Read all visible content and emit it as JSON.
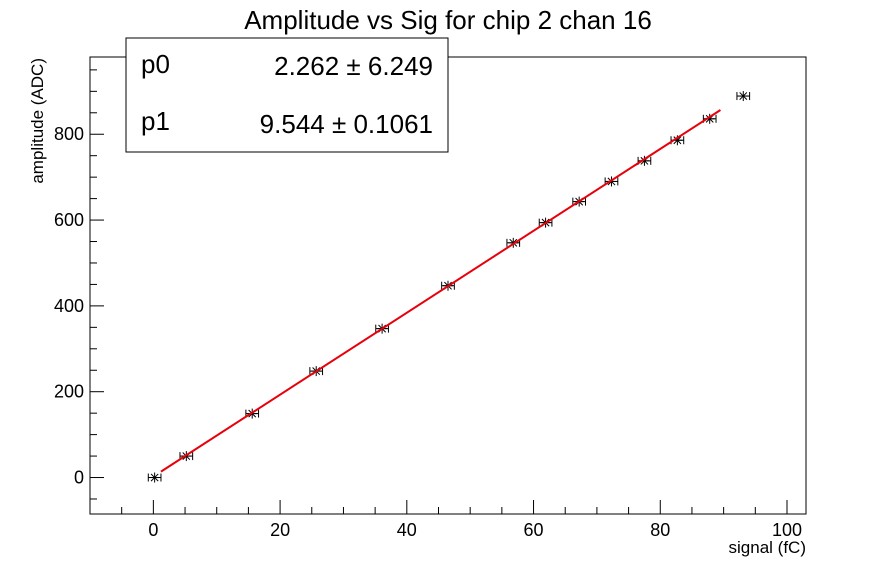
{
  "chart_data": {
    "type": "scatter",
    "title": "Amplitude vs Sig for chip 2 chan 16",
    "xlabel": "signal (fC)",
    "ylabel": "amplitude (ADC)",
    "xlim": [
      -10,
      103
    ],
    "ylim": [
      -85,
      980
    ],
    "x_ticks": [
      0,
      20,
      40,
      60,
      80,
      100
    ],
    "y_ticks": [
      0,
      200,
      400,
      600,
      800
    ],
    "grid": false,
    "points": [
      {
        "x": 0.2,
        "y": 0
      },
      {
        "x": 5.2,
        "y": 50
      },
      {
        "x": 15.6,
        "y": 149
      },
      {
        "x": 25.7,
        "y": 248
      },
      {
        "x": 36.1,
        "y": 347
      },
      {
        "x": 46.5,
        "y": 447
      },
      {
        "x": 56.8,
        "y": 547
      },
      {
        "x": 61.9,
        "y": 594
      },
      {
        "x": 67.2,
        "y": 643
      },
      {
        "x": 72.3,
        "y": 690
      },
      {
        "x": 77.5,
        "y": 738
      },
      {
        "x": 82.7,
        "y": 786
      },
      {
        "x": 87.8,
        "y": 836
      },
      {
        "x": 93.1,
        "y": 889
      }
    ],
    "x_error": 1.0,
    "fit": {
      "function": "p0 + p1*x",
      "x_range": [
        1.2,
        89.5
      ],
      "color": "#e8000b",
      "params": [
        {
          "name": "p0",
          "value": "2.262",
          "error": "6.249",
          "num": 2.262
        },
        {
          "name": "p1",
          "value": "9.544",
          "error": "0.1061",
          "num": 9.544
        }
      ]
    },
    "stats_box_position": "top-left",
    "marker": "asterisk"
  }
}
